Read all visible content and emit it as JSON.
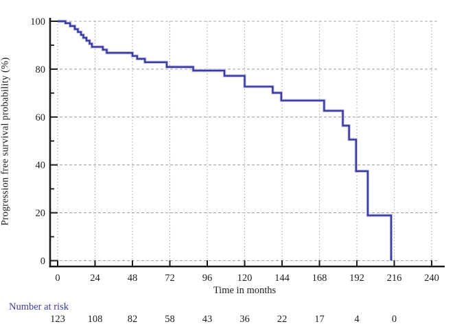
{
  "figure": {
    "background": "#ffffff",
    "y_axis_title": "Progression free survival probability (%)",
    "x_axis_title": "Time in months",
    "number_at_risk_label": "Number at risk",
    "colors": {
      "curve": "#3a3aa0",
      "curve_halo": "#c6c6e6",
      "risk_label_text": "#3c3c9c",
      "tick_text": "#1c1c1c",
      "axis": "#1a1a1a",
      "grid": "#a3a3a3"
    }
  },
  "chart_data": {
    "type": "line",
    "subtype": "kaplan-meier-step",
    "title": "",
    "xlabel": "Time in months",
    "ylabel": "Progression free survival probability (%)",
    "xlim": [
      0,
      240
    ],
    "ylim": [
      0,
      100
    ],
    "x_ticks": [
      0,
      24,
      48,
      72,
      96,
      120,
      144,
      168,
      192,
      216,
      240
    ],
    "y_ticks": [
      0,
      20,
      40,
      60,
      80,
      100
    ],
    "y_minor_ticks": [
      10,
      30,
      50,
      70,
      90
    ],
    "grid": "dashed on both axes at major ticks",
    "legend": null,
    "series": [
      {
        "name": "Progression free survival",
        "color": "#3a3aa0",
        "step": true,
        "points": [
          [
            0,
            100
          ],
          [
            5,
            99.2
          ],
          [
            8,
            98.0
          ],
          [
            11,
            96.7
          ],
          [
            13,
            95.5
          ],
          [
            15,
            94.3
          ],
          [
            16.5,
            93.1
          ],
          [
            18.5,
            91.9
          ],
          [
            20.5,
            90.6
          ],
          [
            22,
            89.3
          ],
          [
            29,
            88.1
          ],
          [
            31.5,
            86.8
          ],
          [
            48,
            85.5
          ],
          [
            51,
            84.3
          ],
          [
            56,
            82.9
          ],
          [
            70,
            80.9
          ],
          [
            87,
            79.4
          ],
          [
            107,
            77.2
          ],
          [
            120,
            72.7
          ],
          [
            138,
            70.1
          ],
          [
            143.5,
            66.9
          ],
          [
            171,
            62.6
          ],
          [
            183,
            56.4
          ],
          [
            187,
            50.6
          ],
          [
            191.5,
            37.4
          ],
          [
            199,
            18.9
          ],
          [
            214,
            0
          ]
        ]
      }
    ],
    "number_at_risk": {
      "label": "Number at risk",
      "times": [
        0,
        24,
        48,
        72,
        96,
        120,
        144,
        168,
        192,
        216
      ],
      "counts": [
        123,
        108,
        82,
        58,
        43,
        36,
        22,
        17,
        4,
        0
      ]
    }
  }
}
